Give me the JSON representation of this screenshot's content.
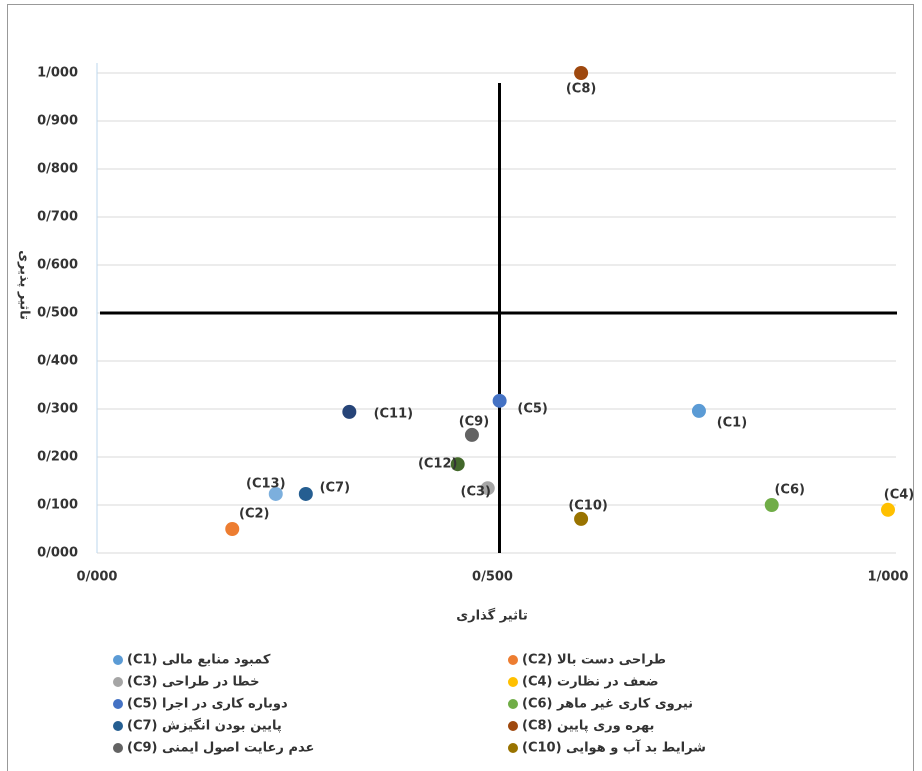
{
  "chart_data": {
    "type": "scatter",
    "xlabel": "تاثیر گذاری",
    "ylabel": "تاثیر پذیری",
    "xlim": [
      0,
      1
    ],
    "ylim": [
      0,
      1
    ],
    "xticks": [
      {
        "value": 0,
        "label": "0/000"
      },
      {
        "value": 0.5,
        "label": "0/500"
      },
      {
        "value": 1,
        "label": "1/000"
      }
    ],
    "yticks": [
      {
        "value": 0,
        "label": "0/000"
      },
      {
        "value": 0.1,
        "label": "0/100"
      },
      {
        "value": 0.2,
        "label": "0/200"
      },
      {
        "value": 0.3,
        "label": "0/300"
      },
      {
        "value": 0.4,
        "label": "0/400"
      },
      {
        "value": 0.5,
        "label": "0/500"
      },
      {
        "value": 0.6,
        "label": "0/600"
      },
      {
        "value": 0.7,
        "label": "0/700"
      },
      {
        "value": 0.8,
        "label": "0/800"
      },
      {
        "value": 0.9,
        "label": "0/900"
      },
      {
        "value": 1,
        "label": "1/000"
      }
    ],
    "grid": true,
    "reference_lines": {
      "x": 0.5,
      "y": 0.5
    },
    "series": [
      {
        "name": "کمبود منابع مالی (C1)",
        "label": "(C1)",
        "color": "#5b9bd5",
        "x": [
          0.761
        ],
        "values": [
          0.296
        ]
      },
      {
        "name": "طراحی دست بالا (C2)",
        "label": "(C2)",
        "color": "#ed7d31",
        "x": [
          0.171
        ],
        "values": [
          0.05
        ]
      },
      {
        "name": "خطا در طراحی (C3)",
        "label": "(C3)",
        "color": "#a5a5a5",
        "x": [
          0.494
        ],
        "values": [
          0.135
        ]
      },
      {
        "name": "ضعف در نظارت (C4)",
        "label": "(C4)",
        "color": "#ffc000",
        "x": [
          1.0
        ],
        "values": [
          0.09
        ]
      },
      {
        "name": "دوباره کاری در اجرا (C5)",
        "label": "(C5)",
        "color": "#4472c4",
        "x": [
          0.509
        ],
        "values": [
          0.317
        ]
      },
      {
        "name": "نیروی کاری غیر ماهر (C6)",
        "label": "(C6)",
        "color": "#70ad47",
        "x": [
          0.853
        ],
        "values": [
          0.1
        ]
      },
      {
        "name": "پایین بودن انگیزش (C7)",
        "label": "(C7)",
        "color": "#255e91",
        "x": [
          0.264
        ],
        "values": [
          0.123
        ]
      },
      {
        "name": "بهره وری پایین (C8)",
        "label": "(C8)",
        "color": "#9e480e",
        "x": [
          0.612
        ],
        "values": [
          1.0
        ]
      },
      {
        "name": "عدم رعایت اصول ایمنی (C9)",
        "label": "(C9)",
        "color": "#636363",
        "x": [
          0.474
        ],
        "values": [
          0.246
        ]
      },
      {
        "name": "شرایط بد آب و هوایی (C10)",
        "label": "(C10)",
        "color": "#997300",
        "x": [
          0.612
        ],
        "values": [
          0.071
        ]
      },
      {
        "label": "(C11)",
        "color": "#264478",
        "x": [
          0.319
        ],
        "values": [
          0.294
        ]
      },
      {
        "label": "(C12)",
        "color": "#43682b",
        "x": [
          0.456
        ],
        "values": [
          0.185
        ]
      },
      {
        "label": "(C13)",
        "color": "#7cafdd",
        "x": [
          0.226
        ],
        "values": [
          0.123
        ]
      }
    ]
  }
}
